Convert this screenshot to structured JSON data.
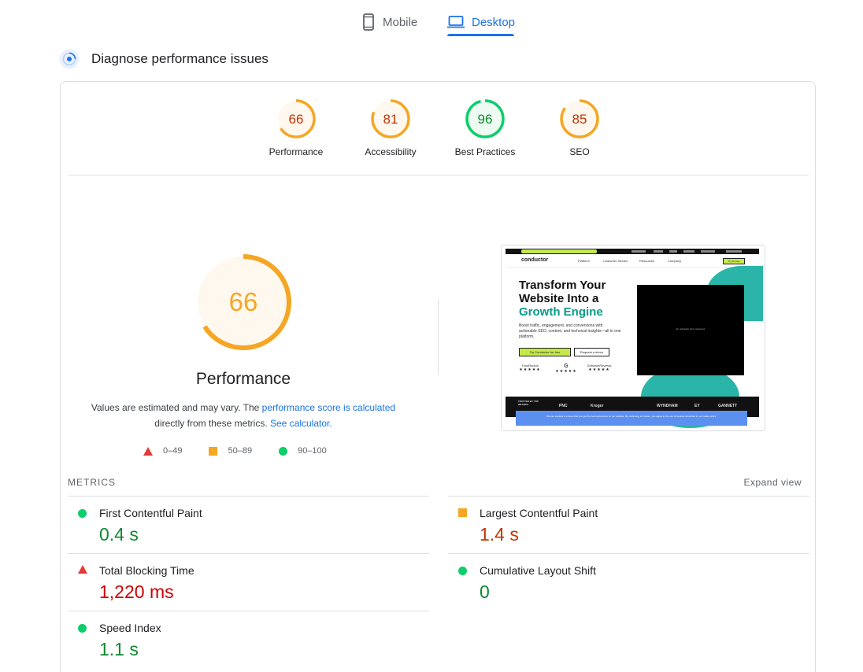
{
  "tabs": [
    {
      "label": "Mobile",
      "icon": "smartphone-icon",
      "active": false
    },
    {
      "label": "Desktop",
      "icon": "laptop-icon",
      "active": true
    }
  ],
  "diagnose": {
    "title": "Diagnose performance issues",
    "icon": "lighthouse-icon"
  },
  "gauges": [
    {
      "score": "66",
      "label": "Performance",
      "color": "#f5a623",
      "text_color": "#c33300",
      "fill": "#fff8ef",
      "fraction": 0.66
    },
    {
      "score": "81",
      "label": "Accessibility",
      "color": "#f5a623",
      "text_color": "#c33300",
      "fill": "#fff8ef",
      "fraction": 0.81
    },
    {
      "score": "96",
      "label": "Best Practices",
      "color": "#0cce6b",
      "text_color": "#0d8a2f",
      "fill": "#eefbf3",
      "fraction": 0.96
    },
    {
      "score": "85",
      "label": "SEO",
      "color": "#f5a623",
      "text_color": "#c33300",
      "fill": "#fff8ef",
      "fraction": 0.85
    }
  ],
  "performance": {
    "score": "66",
    "fraction": 0.66,
    "title": "Performance",
    "note_part1": "Values are estimated and may vary. The ",
    "note_link1": "performance score is calculated",
    "note_part2": " directly from these metrics. ",
    "note_link2": "See calculator."
  },
  "legend": [
    {
      "shape": "triangle",
      "range": "0–49",
      "color": "#e53935"
    },
    {
      "shape": "square",
      "range": "50–89",
      "color": "#f5a623"
    },
    {
      "shape": "circle",
      "range": "90–100",
      "color": "#0cce6b"
    }
  ],
  "screenshot": {
    "logo": "conductor",
    "nav": [
      "Platform",
      "Customer Stories",
      "Resources",
      "Company"
    ],
    "cta": "Try for free",
    "headline_line1": "Transform Your",
    "headline_line2": "Website Into a",
    "headline_line3": "Growth Engine",
    "paragraph": "Boost traffic, engagement, and conversions with actionable SEO, content, and technical insights—all in one platform.",
    "button_primary": "Try Conductor for free",
    "button_secondary": "Request a demo",
    "badges": [
      "TrustRadius",
      "G",
      "SoftwareReviews"
    ],
    "video_error": "An unknown error occurred.",
    "brands_label": "TRUSTED BY TOP BRANDS",
    "brands": [
      "PNC",
      "Kroger",
      "WYNDHAM",
      "EY",
      "GANNETT"
    ],
    "cookie_banner": "We use cookies to ensure that you get the best experience on our website. By continuing to browse, you agree to the use of cookies described in our cookie policy."
  },
  "metrics": {
    "header": "METRICS",
    "expand_label": "Expand view",
    "items": [
      {
        "name": "First Contentful Paint",
        "value": "0.4 s",
        "rating": "good"
      },
      {
        "name": "Largest Contentful Paint",
        "value": "1.4 s",
        "rating": "average"
      },
      {
        "name": "Total Blocking Time",
        "value": "1,220 ms",
        "rating": "poor"
      },
      {
        "name": "Cumulative Layout Shift",
        "value": "0",
        "rating": "good"
      },
      {
        "name": "Speed Index",
        "value": "1.1 s",
        "rating": "good"
      }
    ]
  }
}
